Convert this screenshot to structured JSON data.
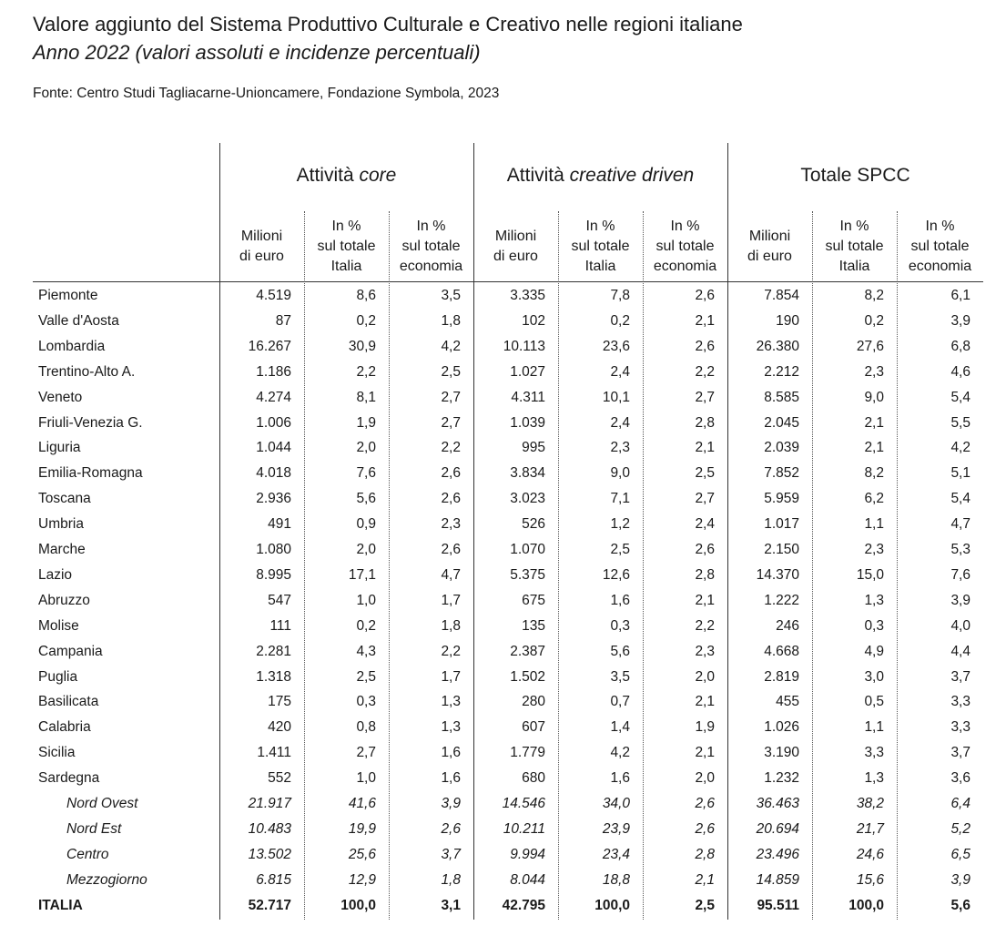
{
  "title": "Valore aggiunto del Sistema Produttivo Culturale e Creativo nelle regioni italiane",
  "subtitle": "Anno 2022 (valori assoluti e incidenze percentuali)",
  "source": "Fonte: Centro Studi Tagliacarne-Unioncamere, Fondazione Symbola, 2023",
  "groups": [
    {
      "label": "Attività",
      "italic": "core"
    },
    {
      "label": "Attività",
      "italic": "creative driven"
    },
    {
      "label": "Totale SPCC",
      "italic": ""
    }
  ],
  "column_headers": [
    "Milioni di euro",
    "In % sul totale Italia",
    "In % sul totale economia",
    "Milioni di euro",
    "In % sul totale Italia",
    "In % sul totale economia",
    "Milioni di euro",
    "In % sul totale Italia",
    "In % sul totale economia"
  ],
  "rows": [
    {
      "name": "Piemonte",
      "type": "region",
      "values": [
        "4.519",
        "8,6",
        "3,5",
        "3.335",
        "7,8",
        "2,6",
        "7.854",
        "8,2",
        "6,1"
      ]
    },
    {
      "name": "Valle d'Aosta",
      "type": "region",
      "values": [
        "87",
        "0,2",
        "1,8",
        "102",
        "0,2",
        "2,1",
        "190",
        "0,2",
        "3,9"
      ]
    },
    {
      "name": "Lombardia",
      "type": "region",
      "values": [
        "16.267",
        "30,9",
        "4,2",
        "10.113",
        "23,6",
        "2,6",
        "26.380",
        "27,6",
        "6,8"
      ]
    },
    {
      "name": "Trentino-Alto A.",
      "type": "region",
      "values": [
        "1.186",
        "2,2",
        "2,5",
        "1.027",
        "2,4",
        "2,2",
        "2.212",
        "2,3",
        "4,6"
      ]
    },
    {
      "name": "Veneto",
      "type": "region",
      "values": [
        "4.274",
        "8,1",
        "2,7",
        "4.311",
        "10,1",
        "2,7",
        "8.585",
        "9,0",
        "5,4"
      ]
    },
    {
      "name": "Friuli-Venezia G.",
      "type": "region",
      "values": [
        "1.006",
        "1,9",
        "2,7",
        "1.039",
        "2,4",
        "2,8",
        "2.045",
        "2,1",
        "5,5"
      ]
    },
    {
      "name": "Liguria",
      "type": "region",
      "values": [
        "1.044",
        "2,0",
        "2,2",
        "995",
        "2,3",
        "2,1",
        "2.039",
        "2,1",
        "4,2"
      ]
    },
    {
      "name": "Emilia-Romagna",
      "type": "region",
      "values": [
        "4.018",
        "7,6",
        "2,6",
        "3.834",
        "9,0",
        "2,5",
        "7.852",
        "8,2",
        "5,1"
      ]
    },
    {
      "name": "Toscana",
      "type": "region",
      "values": [
        "2.936",
        "5,6",
        "2,6",
        "3.023",
        "7,1",
        "2,7",
        "5.959",
        "6,2",
        "5,4"
      ]
    },
    {
      "name": "Umbria",
      "type": "region",
      "values": [
        "491",
        "0,9",
        "2,3",
        "526",
        "1,2",
        "2,4",
        "1.017",
        "1,1",
        "4,7"
      ]
    },
    {
      "name": "Marche",
      "type": "region",
      "values": [
        "1.080",
        "2,0",
        "2,6",
        "1.070",
        "2,5",
        "2,6",
        "2.150",
        "2,3",
        "5,3"
      ]
    },
    {
      "name": "Lazio",
      "type": "region",
      "values": [
        "8.995",
        "17,1",
        "4,7",
        "5.375",
        "12,6",
        "2,8",
        "14.370",
        "15,0",
        "7,6"
      ]
    },
    {
      "name": "Abruzzo",
      "type": "region",
      "values": [
        "547",
        "1,0",
        "1,7",
        "675",
        "1,6",
        "2,1",
        "1.222",
        "1,3",
        "3,9"
      ]
    },
    {
      "name": "Molise",
      "type": "region",
      "values": [
        "111",
        "0,2",
        "1,8",
        "135",
        "0,3",
        "2,2",
        "246",
        "0,3",
        "4,0"
      ]
    },
    {
      "name": "Campania",
      "type": "region",
      "values": [
        "2.281",
        "4,3",
        "2,2",
        "2.387",
        "5,6",
        "2,3",
        "4.668",
        "4,9",
        "4,4"
      ]
    },
    {
      "name": "Puglia",
      "type": "region",
      "values": [
        "1.318",
        "2,5",
        "1,7",
        "1.502",
        "3,5",
        "2,0",
        "2.819",
        "3,0",
        "3,7"
      ]
    },
    {
      "name": "Basilicata",
      "type": "region",
      "values": [
        "175",
        "0,3",
        "1,3",
        "280",
        "0,7",
        "2,1",
        "455",
        "0,5",
        "3,3"
      ]
    },
    {
      "name": "Calabria",
      "type": "region",
      "values": [
        "420",
        "0,8",
        "1,3",
        "607",
        "1,4",
        "1,9",
        "1.026",
        "1,1",
        "3,3"
      ]
    },
    {
      "name": "Sicilia",
      "type": "region",
      "values": [
        "1.411",
        "2,7",
        "1,6",
        "1.779",
        "4,2",
        "2,1",
        "3.190",
        "3,3",
        "3,7"
      ]
    },
    {
      "name": "Sardegna",
      "type": "region",
      "values": [
        "552",
        "1,0",
        "1,6",
        "680",
        "1,6",
        "2,0",
        "1.232",
        "1,3",
        "3,6"
      ]
    },
    {
      "name": "Nord Ovest",
      "type": "area",
      "values": [
        "21.917",
        "41,6",
        "3,9",
        "14.546",
        "34,0",
        "2,6",
        "36.463",
        "38,2",
        "6,4"
      ]
    },
    {
      "name": "Nord Est",
      "type": "area",
      "values": [
        "10.483",
        "19,9",
        "2,6",
        "10.211",
        "23,9",
        "2,6",
        "20.694",
        "21,7",
        "5,2"
      ]
    },
    {
      "name": "Centro",
      "type": "area",
      "values": [
        "13.502",
        "25,6",
        "3,7",
        "9.994",
        "23,4",
        "2,8",
        "23.496",
        "24,6",
        "6,5"
      ]
    },
    {
      "name": "Mezzogiorno",
      "type": "area",
      "values": [
        "6.815",
        "12,9",
        "1,8",
        "8.044",
        "18,8",
        "2,1",
        "14.859",
        "15,6",
        "3,9"
      ]
    },
    {
      "name": "ITALIA",
      "type": "total",
      "values": [
        "52.717",
        "100,0",
        "3,1",
        "42.795",
        "100,0",
        "2,5",
        "95.511",
        "100,0",
        "5,6"
      ]
    }
  ]
}
